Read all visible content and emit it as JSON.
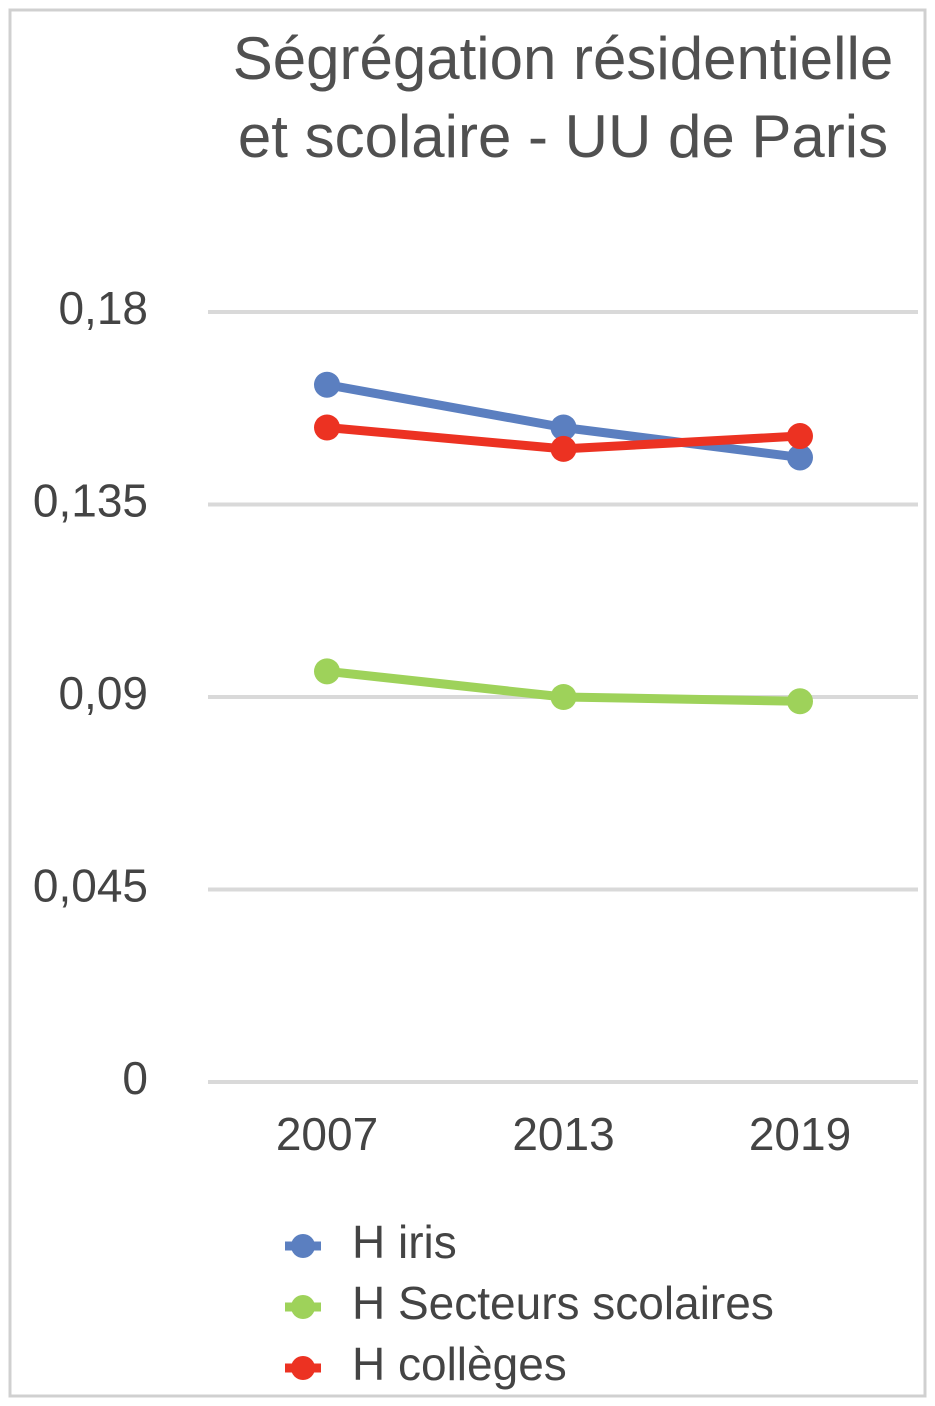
{
  "chart_data": {
    "type": "line",
    "title": "Ségrégation résidentielle et scolaire - UU de Paris",
    "categories": [
      "2007",
      "2013",
      "2019"
    ],
    "series": [
      {
        "name": "H iris",
        "color": "#5b7fc0",
        "values": [
          0.163,
          0.153,
          0.146
        ]
      },
      {
        "name": "H Secteurs scolaires",
        "color": "#9ed25a",
        "values": [
          0.096,
          0.09,
          0.089
        ]
      },
      {
        "name": "H collèges",
        "color": "#ec3222",
        "values": [
          0.153,
          0.148,
          0.151
        ]
      }
    ],
    "ylim": [
      0,
      0.18
    ],
    "yticks": [
      0,
      {
        "value": 0.045,
        "label": "0,045"
      },
      {
        "value": 0.09,
        "label": "0,09"
      },
      {
        "value": 0.135,
        "label": "0,135"
      },
      {
        "value": 0.18,
        "label": "0,18"
      }
    ],
    "grid": true,
    "legend": "bottom"
  }
}
